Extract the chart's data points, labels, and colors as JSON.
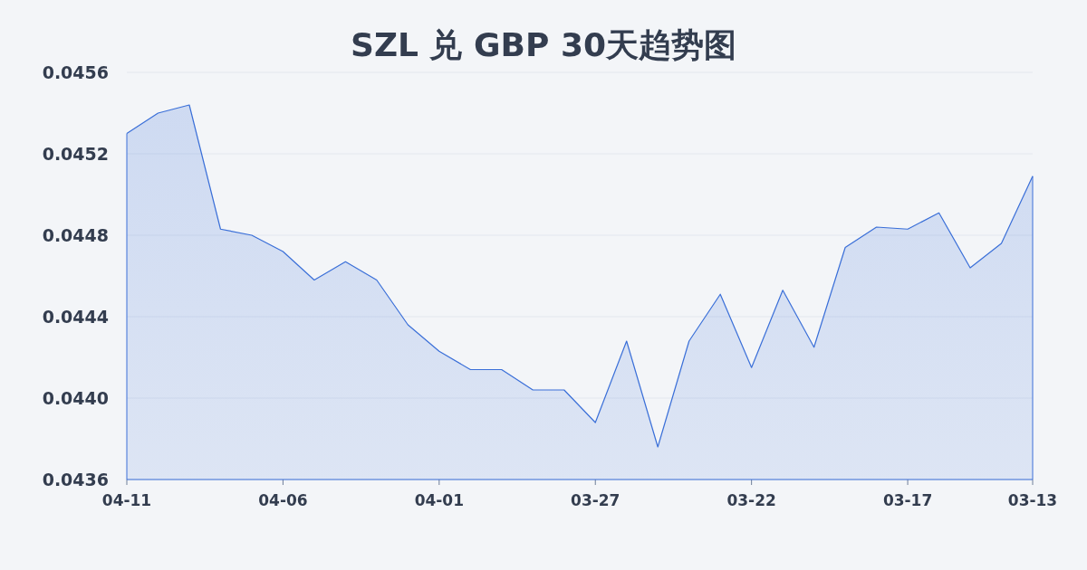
{
  "chart_data": {
    "type": "area",
    "title": "SZL 兑 GBP 30天趋势图",
    "categories": [
      "04-11",
      null,
      null,
      null,
      null,
      "04-06",
      null,
      null,
      null,
      null,
      "04-01",
      null,
      null,
      null,
      null,
      "03-27",
      null,
      null,
      null,
      null,
      "03-22",
      null,
      null,
      null,
      null,
      "03-17",
      null,
      null,
      null,
      "03-13"
    ],
    "values": [
      0.0453,
      0.0454,
      0.04544,
      0.04483,
      0.0448,
      0.04472,
      0.04458,
      0.04467,
      0.04458,
      0.04436,
      0.04423,
      0.04414,
      0.04414,
      0.04404,
      0.04404,
      0.04388,
      0.04428,
      0.04376,
      0.04428,
      0.04451,
      0.04415,
      0.04453,
      0.04425,
      0.04474,
      0.04484,
      0.04483,
      0.04491,
      0.04464,
      0.04476,
      0.04509
    ],
    "color": "#3a6fd8",
    "ylim": [
      0.0436,
      0.0456
    ],
    "yticks": [
      0.0436,
      {
        "value": 0.044,
        "label": "0.0440"
      },
      0.0444,
      0.0448,
      0.0452,
      0.0456
    ],
    "grid": "y"
  }
}
